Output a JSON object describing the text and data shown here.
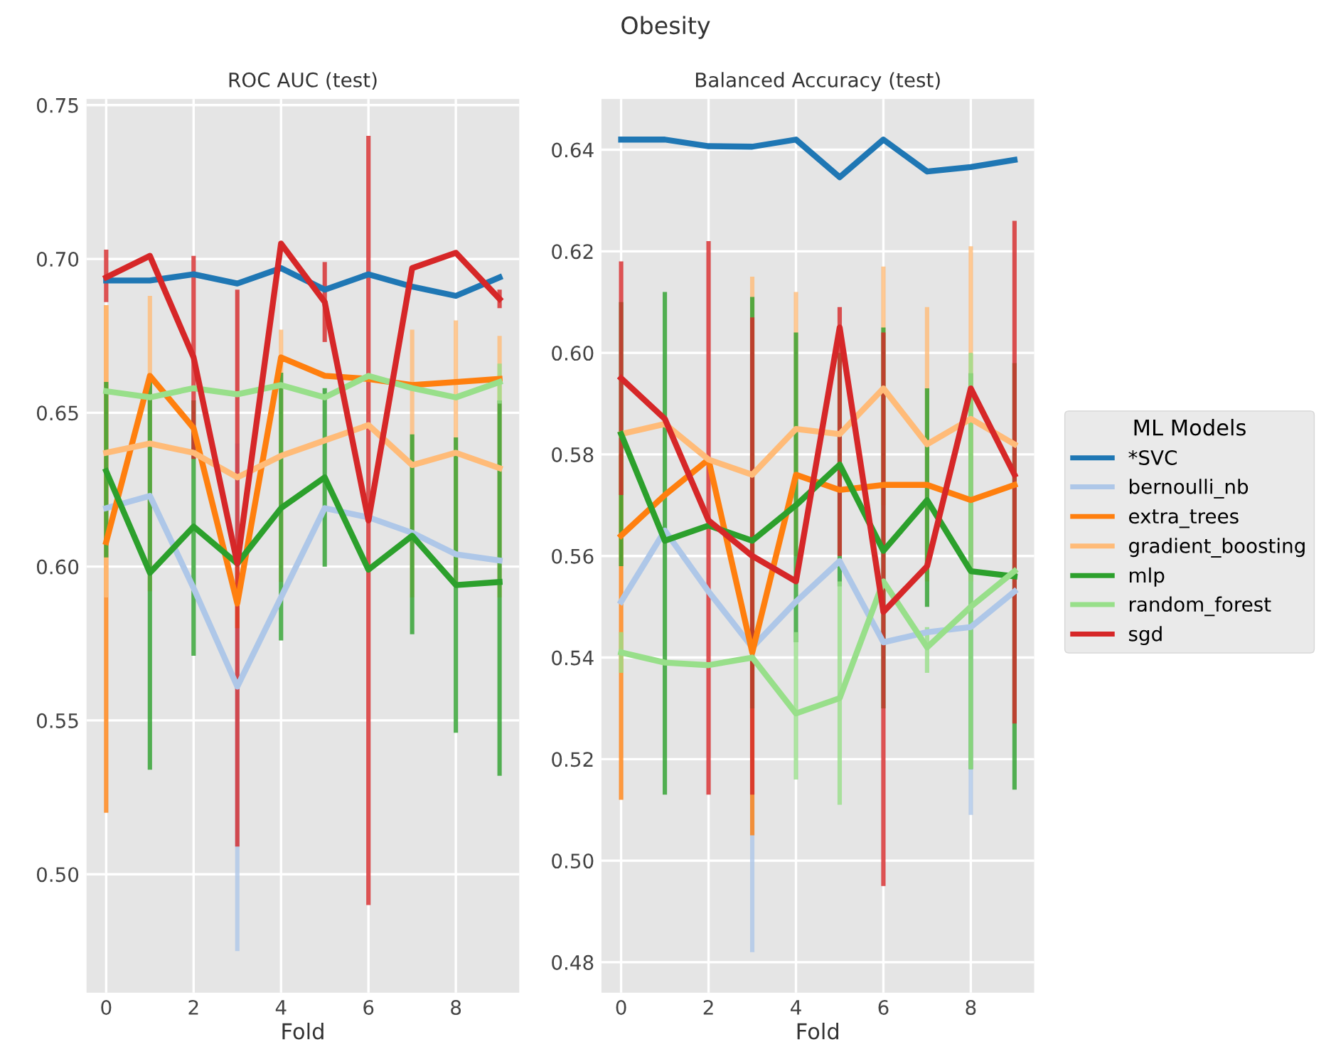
{
  "chart_data": [
    {
      "type": "line",
      "title": "ROC AUC (test)",
      "xlabel": "Fold",
      "annotations": [
        "Obesity"
      ],
      "x": [
        0,
        1,
        2,
        3,
        4,
        5,
        6,
        7,
        8,
        9
      ],
      "xlim": [
        -0.45,
        9.45
      ],
      "xticks": [
        0,
        2,
        4,
        6,
        8
      ],
      "ylim": [
        0.4615,
        0.752
      ],
      "yticks": [
        {
          "value": 0.5,
          "label": "0.50"
        },
        0.55,
        {
          "value": 0.6,
          "label": "0.60"
        },
        0.65,
        {
          "value": 0.7,
          "label": "0.70"
        },
        0.75
      ],
      "grid": true,
      "line_style": "solid",
      "marker": "none",
      "legend": "right",
      "legend_title": "ML Models",
      "series": [
        {
          "name": "*SVC",
          "color": "#1f77b4",
          "values": [
            0.693,
            0.693,
            0.695,
            0.692,
            0.697,
            0.69,
            0.695,
            0.691,
            0.688,
            0.694
          ],
          "errors": [
            null,
            null,
            null,
            null,
            null,
            null,
            null,
            null,
            null,
            null
          ]
        },
        {
          "name": "bernoulli_nb",
          "color": "#aec7e8",
          "values": [
            0.619,
            0.623,
            0.593,
            0.561,
            0.59,
            0.619,
            0.616,
            0.611,
            0.604,
            0.602
          ],
          "errors": [
            null,
            null,
            null,
            [
              0.475,
              0.64
            ],
            null,
            null,
            null,
            null,
            null,
            null
          ]
        },
        {
          "name": "extra_trees",
          "color": "#ff7f0e",
          "values": [
            0.608,
            0.662,
            0.645,
            0.588,
            0.668,
            0.662,
            0.661,
            0.659,
            0.66,
            0.661
          ],
          "errors": [
            [
              0.52,
              0.685
            ],
            null,
            null,
            [
              0.58,
              0.6
            ],
            null,
            null,
            null,
            null,
            null,
            null
          ]
        },
        {
          "name": "gradient_boosting",
          "color": "#ffbb78",
          "values": [
            0.637,
            0.64,
            0.637,
            0.629,
            0.636,
            0.641,
            0.646,
            0.633,
            0.637,
            0.632
          ],
          "errors": [
            [
              0.59,
              0.685
            ],
            [
              0.592,
              0.688
            ],
            null,
            null,
            [
              0.595,
              0.677
            ],
            null,
            null,
            [
              0.59,
              0.677
            ],
            [
              0.594,
              0.68
            ],
            [
              0.59,
              0.675
            ]
          ]
        },
        {
          "name": "mlp",
          "color": "#2ca02c",
          "values": [
            0.631,
            0.598,
            0.613,
            0.601,
            0.619,
            0.629,
            0.599,
            0.61,
            0.594,
            0.595
          ],
          "errors": [
            [
              0.603,
              0.66
            ],
            [
              0.534,
              0.662
            ],
            [
              0.571,
              0.654
            ],
            null,
            [
              0.576,
              0.663
            ],
            [
              0.6,
              0.658
            ],
            null,
            [
              0.578,
              0.643
            ],
            [
              0.546,
              0.642
            ],
            [
              0.532,
              0.654
            ]
          ]
        },
        {
          "name": "random_forest",
          "color": "#98df8a",
          "values": [
            0.657,
            0.655,
            0.658,
            0.656,
            0.659,
            0.655,
            0.662,
            0.658,
            0.655,
            0.66
          ],
          "errors": [
            null,
            null,
            null,
            null,
            null,
            null,
            null,
            null,
            null,
            [
              0.653,
              0.666
            ]
          ]
        },
        {
          "name": "sgd",
          "color": "#d62728",
          "values": [
            0.694,
            0.701,
            0.668,
            0.601,
            0.705,
            0.686,
            0.615,
            0.697,
            0.702,
            0.687
          ],
          "errors": [
            [
              0.686,
              0.703
            ],
            null,
            [
              0.635,
              0.701
            ],
            [
              0.509,
              0.69
            ],
            null,
            [
              0.673,
              0.699
            ],
            [
              0.49,
              0.74
            ],
            null,
            null,
            [
              0.684,
              0.69
            ]
          ]
        }
      ]
    },
    {
      "type": "line",
      "title": "Balanced Accuracy (test)",
      "xlabel": "Fold",
      "x": [
        0,
        1,
        2,
        3,
        4,
        5,
        6,
        7,
        8,
        9
      ],
      "xlim": [
        -0.45,
        9.45
      ],
      "xticks": [
        0,
        2,
        4,
        6,
        8
      ],
      "ylim": [
        0.474,
        0.65
      ],
      "yticks": [
        0.48,
        {
          "value": 0.5,
          "label": "0.50"
        },
        0.52,
        0.54,
        0.56,
        0.58,
        {
          "value": 0.6,
          "label": "0.60"
        },
        0.62,
        0.64
      ],
      "grid": true,
      "line_style": "solid",
      "marker": "none",
      "series": [
        {
          "color": "#1f77b4",
          "values": [
            0.642,
            0.642,
            0.6407,
            0.6406,
            0.642,
            0.6346,
            0.642,
            0.6357,
            0.6366,
            0.638
          ],
          "errors": [
            null,
            null,
            null,
            null,
            null,
            null,
            null,
            null,
            null,
            null
          ]
        },
        {
          "color": "#aec7e8",
          "values": [
            0.551,
            0.565,
            0.553,
            0.542,
            0.551,
            0.559,
            0.543,
            0.545,
            0.546,
            0.553
          ],
          "errors": [
            null,
            null,
            null,
            [
              0.482,
              0.6
            ],
            null,
            null,
            null,
            null,
            [
              0.509,
              0.58
            ],
            null
          ]
        },
        {
          "color": "#ff7f0e",
          "values": [
            0.564,
            0.572,
            0.579,
            0.541,
            0.576,
            0.573,
            0.574,
            0.574,
            0.571,
            0.574
          ],
          "errors": [
            [
              0.512,
              0.58
            ],
            null,
            null,
            [
              0.505,
              0.58
            ],
            null,
            null,
            null,
            null,
            null,
            null
          ]
        },
        {
          "color": "#ffbb78",
          "values": [
            0.584,
            0.586,
            0.579,
            0.576,
            0.585,
            0.584,
            0.593,
            0.582,
            0.587,
            0.582
          ],
          "errors": [
            null,
            null,
            null,
            [
              0.54,
              0.615
            ],
            [
              0.56,
              0.612
            ],
            null,
            [
              0.57,
              0.617
            ],
            [
              0.555,
              0.609
            ],
            [
              0.555,
              0.621
            ],
            null
          ]
        },
        {
          "color": "#2ca02c",
          "values": [
            0.584,
            0.563,
            0.566,
            0.563,
            0.57,
            0.578,
            0.561,
            0.571,
            0.557,
            0.556
          ],
          "errors": [
            [
              0.558,
              0.61
            ],
            [
              0.513,
              0.612
            ],
            null,
            [
              0.53,
              0.611
            ],
            [
              0.543,
              0.604
            ],
            [
              0.554,
              0.6
            ],
            [
              0.53,
              0.605
            ],
            [
              0.55,
              0.593
            ],
            [
              0.518,
              0.596
            ],
            [
              0.514,
              0.598
            ]
          ]
        },
        {
          "color": "#98df8a",
          "values": [
            0.541,
            0.539,
            0.5385,
            0.54,
            0.529,
            0.532,
            0.555,
            0.542,
            0.55,
            0.557
          ],
          "errors": [
            [
              0.537,
              0.545
            ],
            null,
            null,
            null,
            [
              0.516,
              0.545
            ],
            [
              0.511,
              0.555
            ],
            null,
            [
              0.537,
              0.546
            ],
            [
              0.518,
              0.6
            ],
            null
          ]
        },
        {
          "color": "#d62728",
          "values": [
            0.595,
            0.587,
            0.567,
            0.56,
            0.555,
            0.605,
            0.549,
            0.558,
            0.593,
            0.576
          ],
          "errors": [
            [
              0.572,
              0.618
            ],
            null,
            [
              0.513,
              0.622
            ],
            [
              0.513,
              0.607
            ],
            null,
            [
              0.56,
              0.609
            ],
            [
              0.495,
              0.604
            ],
            null,
            null,
            [
              0.527,
              0.626
            ]
          ]
        }
      ]
    }
  ]
}
